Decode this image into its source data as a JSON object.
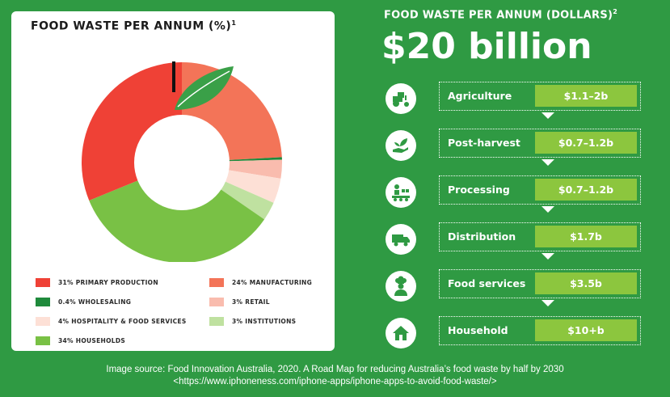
{
  "left_panel": {
    "title": "FOOD WASTE PER ANNUM (%)",
    "title_sup": "1"
  },
  "right_panel": {
    "title": "FOOD WASTE PER ANNUM (DOLLARS)",
    "title_sup": "2",
    "total": "$20 billion"
  },
  "stages": [
    {
      "label": "Agriculture",
      "value": "$1.1–2b",
      "icon": "tractor-icon"
    },
    {
      "label": "Post-harvest",
      "value": "$0.7–1.2b",
      "icon": "hand-leaf-icon"
    },
    {
      "label": "Processing",
      "value": "$0.7–1.2b",
      "icon": "conveyor-icon"
    },
    {
      "label": "Distribution",
      "value": "$1.7b",
      "icon": "truck-icon"
    },
    {
      "label": "Food services",
      "value": "$3.5b",
      "icon": "chef-icon"
    },
    {
      "label": "Household",
      "value": "$10+b",
      "icon": "house-icon"
    }
  ],
  "caption": {
    "line1": "Image source:  Food Innovation Australia, 2020. A Road Map for reducing Australia’s food waste by half by 2030",
    "line2": "<https://www.iphoneness.com/iphone-apps/iphone-apps-to-avoid-food-waste/>"
  },
  "colors": {
    "background": "#2f9a43",
    "value_box": "#8cc63e",
    "leaf": "#3aa048",
    "stem": "#111111"
  },
  "chart_data": {
    "type": "pie",
    "title": "FOOD WASTE PER ANNUM (%)",
    "donut": true,
    "legend_position": "bottom",
    "slices": [
      {
        "label": "31% PRIMARY PRODUCTION",
        "value": 31,
        "color": "#ef4136"
      },
      {
        "label": "24% MANUFACTURING",
        "value": 24,
        "color": "#f37458"
      },
      {
        "label": "0.4% WHOLESALING",
        "value": 0.4,
        "color": "#1f8a3c"
      },
      {
        "label": "3% RETAIL",
        "value": 3,
        "color": "#f9bcae"
      },
      {
        "label": "4% HOSPITALITY & FOOD SERVICES",
        "value": 4,
        "color": "#fde0d6"
      },
      {
        "label": "3% INSTITUTIONS",
        "value": 3,
        "color": "#bfe1a0"
      },
      {
        "label": "34% HOUSEHOLDS",
        "value": 34,
        "color": "#79c145"
      }
    ]
  }
}
